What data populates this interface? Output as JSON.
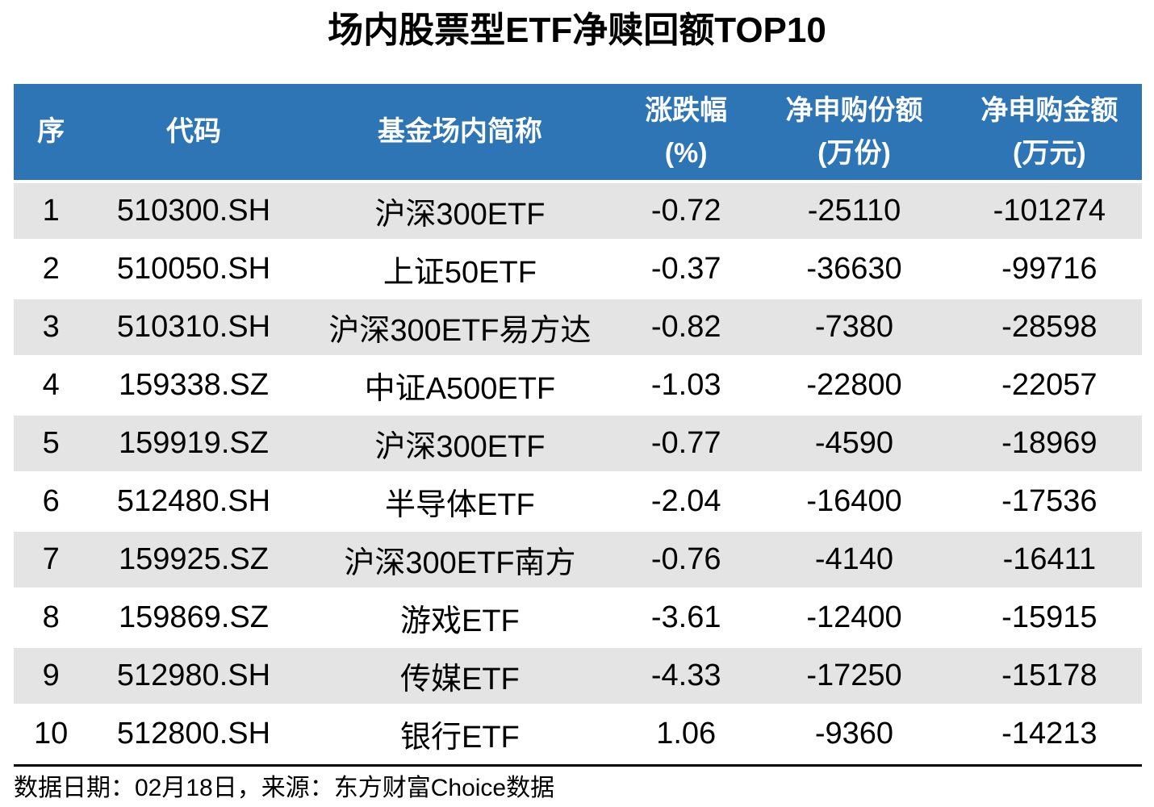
{
  "title": "场内股票型ETF净赎回额TOP10",
  "colors": {
    "header_bg": "#2E75B6",
    "header_text": "#FFFFFF",
    "stripe_bg": "#E4E4E4",
    "body_text": "#000000",
    "divider": "#000000"
  },
  "chart_data": {
    "type": "table",
    "title": "场内股票型ETF净赎回额TOP10",
    "columns": [
      {
        "label": "序",
        "unit": ""
      },
      {
        "label": "代码",
        "unit": ""
      },
      {
        "label": "基金场内简称",
        "unit": ""
      },
      {
        "label": "涨跌幅",
        "unit": "(%)"
      },
      {
        "label": "净申购份额",
        "unit": "(万份)"
      },
      {
        "label": "净申购金额",
        "unit": "(万元)"
      }
    ],
    "rows": [
      {
        "seq": 1,
        "code": "510300.SH",
        "name": "沪深300ETF",
        "chg": -0.72,
        "shares": -25110,
        "amount": -101274
      },
      {
        "seq": 2,
        "code": "510050.SH",
        "name": "上证50ETF",
        "chg": -0.37,
        "shares": -36630,
        "amount": -99716
      },
      {
        "seq": 3,
        "code": "510310.SH",
        "name": "沪深300ETF易方达",
        "chg": -0.82,
        "shares": -7380,
        "amount": -28598
      },
      {
        "seq": 4,
        "code": "159338.SZ",
        "name": "中证A500ETF",
        "chg": -1.03,
        "shares": -22800,
        "amount": -22057
      },
      {
        "seq": 5,
        "code": "159919.SZ",
        "name": "沪深300ETF",
        "chg": -0.77,
        "shares": -4590,
        "amount": -18969
      },
      {
        "seq": 6,
        "code": "512480.SH",
        "name": "半导体ETF",
        "chg": -2.04,
        "shares": -16400,
        "amount": -17536
      },
      {
        "seq": 7,
        "code": "159925.SZ",
        "name": "沪深300ETF南方",
        "chg": -0.76,
        "shares": -4140,
        "amount": -16411
      },
      {
        "seq": 8,
        "code": "159869.SZ",
        "name": "游戏ETF",
        "chg": -3.61,
        "shares": -12400,
        "amount": -15915
      },
      {
        "seq": 9,
        "code": "512980.SH",
        "name": "传媒ETF",
        "chg": -4.33,
        "shares": -17250,
        "amount": -15178
      },
      {
        "seq": 10,
        "code": "512800.SH",
        "name": "银行ETF",
        "chg": 1.06,
        "shares": -9360,
        "amount": -14213
      }
    ],
    "layout": {
      "stripe_rows": "odd",
      "column_widths_pct": [
        6.6,
        18.7,
        28.5,
        11.6,
        18.2,
        16.4
      ]
    }
  },
  "footer": {
    "text": "数据日期：02月18日，来源：东方财富Choice数据"
  }
}
